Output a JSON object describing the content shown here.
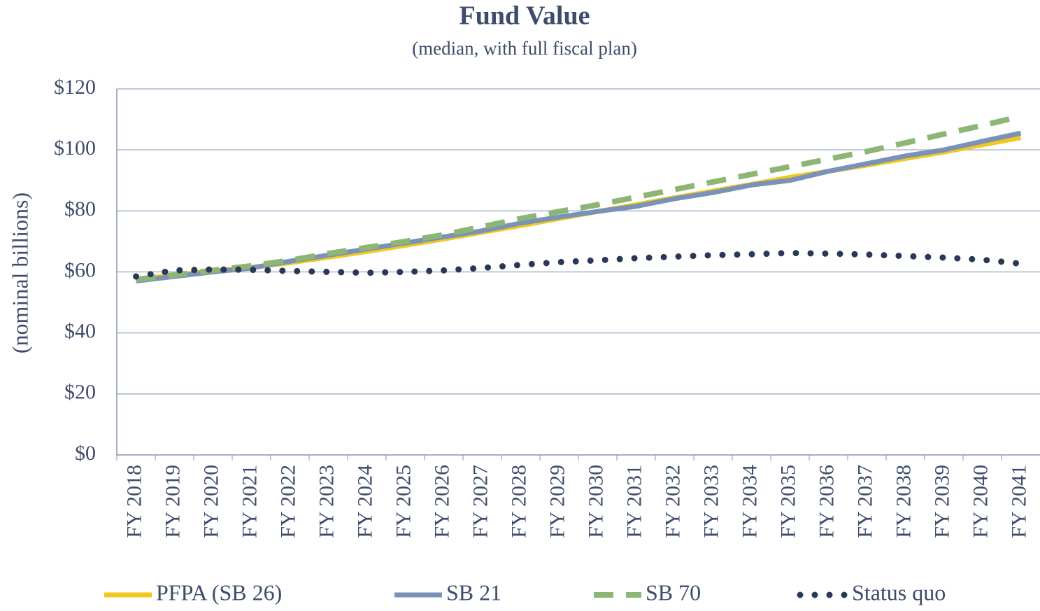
{
  "chart_data": {
    "type": "line",
    "title": "Fund Value",
    "subtitle": "(median, with full fiscal plan)",
    "y_label": "(nominal billions)",
    "categories": [
      "FY 2018",
      "FY 2019",
      "FY 2020",
      "FY 2021",
      "FY 2022",
      "FY 2023",
      "FY 2024",
      "FY 2025",
      "FY 2026",
      "FY 2027",
      "FY 2028",
      "FY 2029",
      "FY 2030",
      "FY 2031",
      "FY 2032",
      "FY 2033",
      "FY 2034",
      "FY 2035",
      "FY 2036",
      "FY 2037",
      "FY 2038",
      "FY 2039",
      "FY 2040",
      "FY 2041"
    ],
    "series": [
      {
        "name": "PFPA (SB 26)",
        "color": "#f2c81e",
        "dash": "solid",
        "values": [
          57.5,
          59,
          60.3,
          61.5,
          63,
          64.8,
          66.7,
          68.7,
          70.8,
          73,
          75.2,
          77.5,
          79.8,
          82,
          84.3,
          86.5,
          88.7,
          91,
          93,
          95,
          97.2,
          99.3,
          101.7,
          104
        ]
      },
      {
        "name": "SB 21",
        "color": "#7b92b8",
        "dash": "solid",
        "values": [
          57,
          58.5,
          60,
          61.3,
          63.5,
          65.5,
          67.5,
          69.5,
          71.5,
          73.5,
          76,
          78,
          79.8,
          81.5,
          84,
          86,
          88.5,
          90,
          93,
          95.5,
          98,
          100,
          102.8,
          105.5
        ]
      },
      {
        "name": "SB 70",
        "color": "#8db576",
        "dash": "dashed",
        "values": [
          57.5,
          59,
          60.5,
          62,
          63.8,
          66,
          68,
          70,
          72.2,
          74.8,
          77.5,
          79.8,
          82,
          84.5,
          87,
          89.5,
          92,
          94.5,
          97,
          99.5,
          102.3,
          105.2,
          108,
          111
        ]
      },
      {
        "name": "Status quo",
        "color": "#2a3858",
        "dash": "dotted",
        "values": [
          58.5,
          60.5,
          60.8,
          60.7,
          60.3,
          60,
          59.7,
          60,
          60.5,
          61.3,
          62.3,
          63.2,
          63.8,
          64.5,
          65,
          65.5,
          65.8,
          66.2,
          66,
          65.7,
          65.2,
          64.7,
          64,
          62.7
        ]
      }
    ],
    "ylim": [
      0,
      120
    ],
    "yticks": [
      {
        "value": 0,
        "label": "$0"
      },
      {
        "value": 20,
        "label": "$20"
      },
      {
        "value": 40,
        "label": "$40"
      },
      {
        "value": 60,
        "label": "$60"
      },
      {
        "value": 80,
        "label": "$80"
      },
      {
        "value": 100,
        "label": "$100"
      },
      {
        "value": 120,
        "label": "$120"
      }
    ],
    "grid": true
  }
}
